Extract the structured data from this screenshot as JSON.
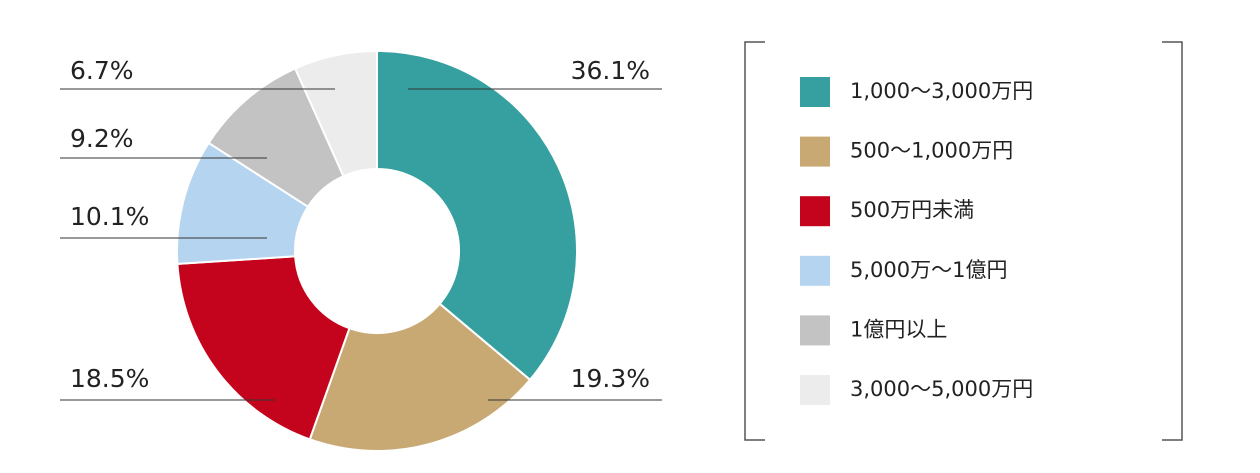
{
  "chart_data": {
    "type": "pie",
    "categories": [
      "1,000〜3,000万円",
      "500〜1,000万円",
      "500万円未満",
      "5,000万〜1億円",
      "1億円以上",
      "3,000〜5,000万円"
    ],
    "values": [
      36.1,
      19.3,
      18.5,
      10.1,
      9.2,
      6.7
    ],
    "value_labels": [
      "36.1%",
      "19.3%",
      "18.5%",
      "10.1%",
      "9.2%",
      "6.7%"
    ],
    "colors": [
      "#35a09f",
      "#c8a974",
      "#c4041c",
      "#b4d4ef",
      "#c3c3c3",
      "#ececec"
    ],
    "legend": "right"
  }
}
